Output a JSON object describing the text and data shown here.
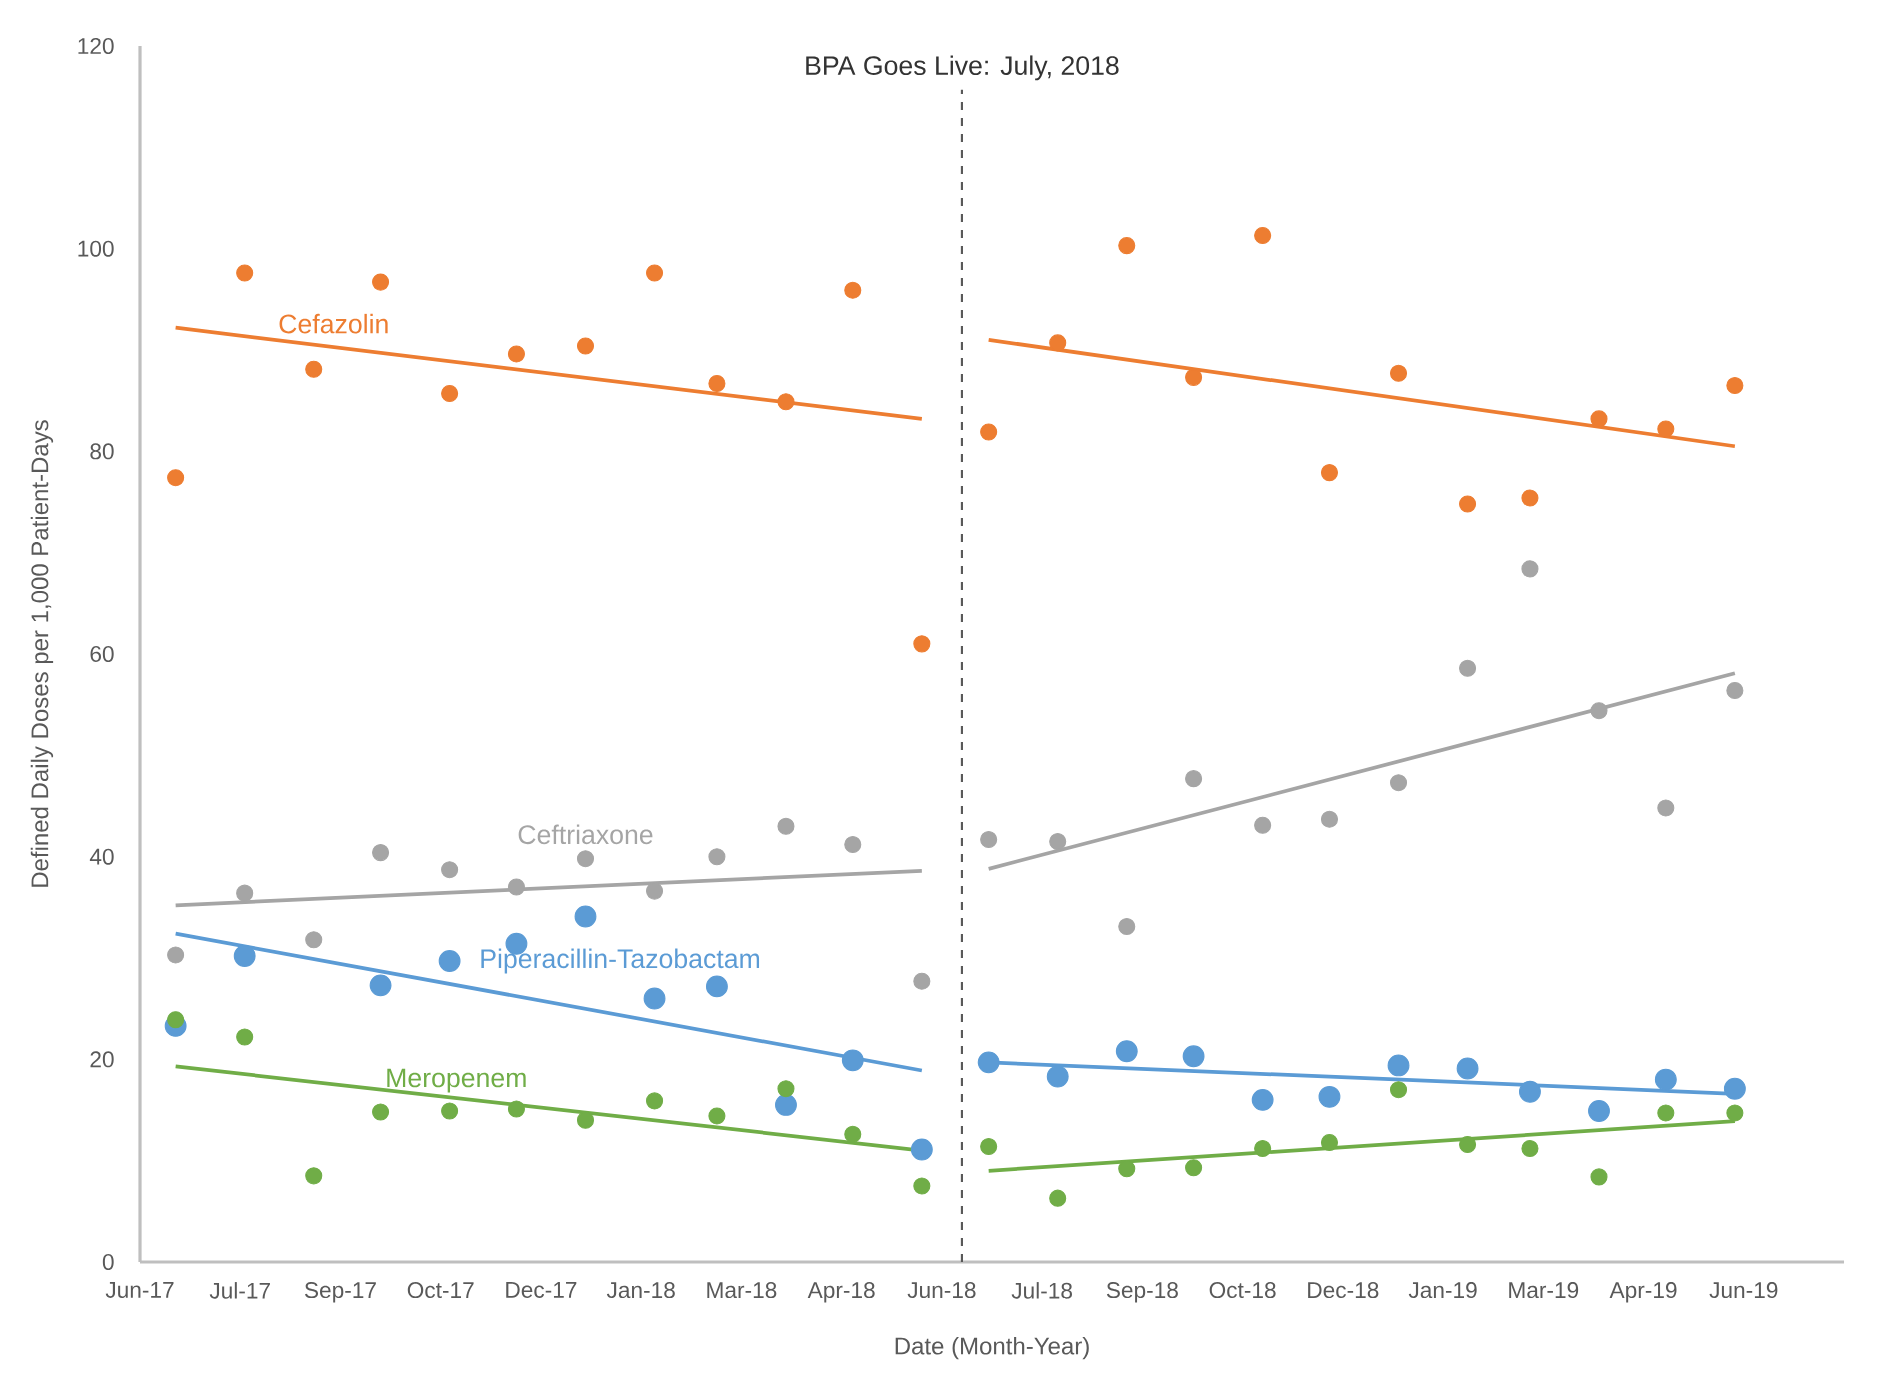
{
  "chart_data": {
    "type": "scatter",
    "xlabel": "Date (Month-Year)",
    "ylabel": "Defined Daily Doses per 1,000 Patient-Days",
    "x": [
      "2017-07",
      "2017-08",
      "2017-09",
      "2017-10",
      "2017-11",
      "2017-12",
      "2018-01",
      "2018-02",
      "2018-03",
      "2018-04",
      "2018-05",
      "2018-06",
      "2018-07",
      "2018-08",
      "2018-09",
      "2018-10",
      "2018-11",
      "2018-12",
      "2019-01",
      "2019-02",
      "2019-03",
      "2019-04",
      "2019-05",
      "2019-06"
    ],
    "xlim": [
      "2017-06-15",
      "2019-07-20"
    ],
    "xticks": [
      {
        "value": "2017-06-15",
        "label": "Jun-17"
      },
      {
        "value": "2017-07-30",
        "label": "Jul-17"
      },
      {
        "value": "2017-09-13",
        "label": "Sep-17"
      },
      {
        "value": "2017-10-28",
        "label": "Oct-17"
      },
      {
        "value": "2017-12-12",
        "label": "Dec-17"
      },
      {
        "value": "2018-01-26",
        "label": "Jan-18"
      },
      {
        "value": "2018-03-12",
        "label": "Mar-18"
      },
      {
        "value": "2018-04-26",
        "label": "Apr-18"
      },
      {
        "value": "2018-06-10",
        "label": "Jun-18"
      },
      {
        "value": "2018-07-25",
        "label": "Jul-18"
      },
      {
        "value": "2018-09-08",
        "label": "Sep-18"
      },
      {
        "value": "2018-10-23",
        "label": "Oct-18"
      },
      {
        "value": "2018-12-07",
        "label": "Dec-18"
      },
      {
        "value": "2019-01-21",
        "label": "Jan-19"
      },
      {
        "value": "2019-03-07",
        "label": "Mar-19"
      },
      {
        "value": "2019-04-21",
        "label": "Apr-19"
      },
      {
        "value": "2019-06-05",
        "label": "Jun-19"
      }
    ],
    "ylim": [
      0,
      120
    ],
    "yticks": [
      0,
      20,
      40,
      60,
      80,
      100,
      120
    ],
    "marker": "circle",
    "ref_lines": [
      {
        "axis": "x",
        "value": "2018-06-19",
        "label": "BPA Goes Live: July, 2018",
        "color": "#595959",
        "line_style": "dashed"
      }
    ],
    "series": [
      {
        "name": "Cefazolin",
        "color": "#ed7d31",
        "values": [
          77.4,
          97.6,
          88.1,
          96.7,
          85.7,
          89.6,
          90.4,
          97.6,
          86.7,
          84.9,
          95.9,
          61.0,
          81.9,
          90.7,
          100.3,
          87.3,
          101.3,
          77.9,
          87.7,
          74.8,
          75.4,
          83.2,
          82.2,
          86.5
        ]
      },
      {
        "name": "Ceftriaxone",
        "color": "#a5a5a5",
        "values": [
          30.3,
          36.4,
          31.8,
          40.4,
          38.7,
          37.0,
          39.8,
          36.6,
          40.0,
          43.0,
          41.2,
          27.7,
          41.7,
          41.5,
          33.1,
          47.7,
          43.1,
          43.7,
          47.3,
          58.6,
          68.4,
          54.4,
          44.8,
          56.4
        ]
      },
      {
        "name": "Piperacillin-Tazobactam",
        "color": "#5b9bd5",
        "values": [
          23.3,
          30.2,
          null,
          27.3,
          29.7,
          31.4,
          34.1,
          26.0,
          27.2,
          15.5,
          19.9,
          11.1,
          19.7,
          18.3,
          20.8,
          20.3,
          16.0,
          16.3,
          19.4,
          19.1,
          16.8,
          14.9,
          18.0,
          17.1
        ]
      },
      {
        "name": "Meropenem",
        "color": "#70ad47",
        "values": [
          23.9,
          22.2,
          8.5,
          14.8,
          14.9,
          15.1,
          14.0,
          15.9,
          14.4,
          17.1,
          12.6,
          7.5,
          11.4,
          6.3,
          9.2,
          9.3,
          11.2,
          11.8,
          17.0,
          11.6,
          11.2,
          8.4,
          14.7,
          14.7
        ]
      },
      {
        "type": "line",
        "marker": "none",
        "color": "#ed7d31",
        "x": [
          "2017-07",
          "2018-06"
        ],
        "values": [
          92.2,
          83.2
        ]
      },
      {
        "type": "line",
        "marker": "none",
        "color": "#ed7d31",
        "x": [
          "2018-07",
          "2019-06"
        ],
        "values": [
          91.0,
          80.5
        ]
      },
      {
        "type": "line",
        "marker": "none",
        "color": "#a5a5a5",
        "x": [
          "2017-07",
          "2018-06"
        ],
        "values": [
          35.2,
          38.6
        ]
      },
      {
        "type": "line",
        "marker": "none",
        "color": "#a5a5a5",
        "x": [
          "2018-07",
          "2019-06"
        ],
        "values": [
          38.8,
          58.1
        ]
      },
      {
        "type": "line",
        "marker": "none",
        "color": "#5b9bd5",
        "x": [
          "2017-07",
          "2018-06"
        ],
        "values": [
          32.4,
          18.9
        ]
      },
      {
        "type": "line",
        "marker": "none",
        "color": "#5b9bd5",
        "x": [
          "2018-07",
          "2019-06"
        ],
        "values": [
          19.7,
          16.6
        ]
      },
      {
        "type": "line",
        "marker": "none",
        "color": "#70ad47",
        "x": [
          "2017-07",
          "2018-06"
        ],
        "values": [
          19.3,
          11.0
        ]
      },
      {
        "type": "line",
        "marker": "none",
        "color": "#70ad47",
        "x": [
          "2018-07",
          "2019-06"
        ],
        "values": [
          9.0,
          13.9
        ]
      }
    ]
  }
}
